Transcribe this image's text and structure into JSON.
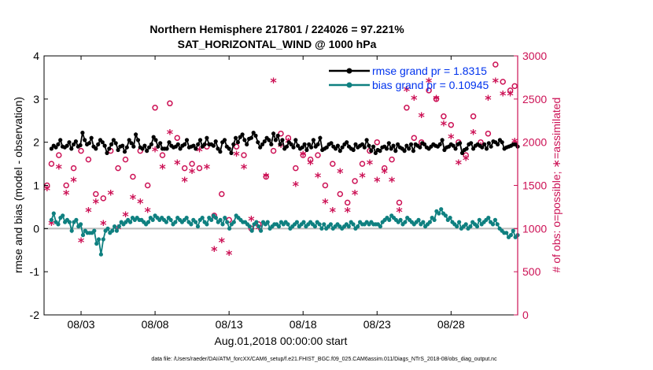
{
  "chart_data": {
    "type": "line",
    "title_line1": "Northern Hemisphere 217801 / 224026 = 97.221%",
    "title_line2": "SAT_HORIZONTAL_WIND @ 1000 hPa",
    "xlabel": "Aug.01,2018 00:00:00 start",
    "ylabel_left": "rmse and bias (model - observation)",
    "ylabel_right": "# of obs: o=possible; ∗=assimilated",
    "footer": "data file: /Users/raeder/DAI/ATM_forcXX/CAM6_setup/f.e21.FHIST_BGC.f09_025.CAM6assim.011/Diags_NTrS_2018-08/obs_diag_output.nc",
    "x_range_days": [
      0.5,
      32.5
    ],
    "y_left_range": [
      -2,
      4
    ],
    "y_right_range": [
      0,
      3000
    ],
    "x_tick_positions": [
      3,
      8,
      13,
      18,
      23,
      28
    ],
    "x_tick_labels": [
      "08/03",
      "08/08",
      "08/13",
      "08/18",
      "08/23",
      "08/28"
    ],
    "y_left_ticks": [
      "-2",
      "-1",
      "0",
      "1",
      "2",
      "3",
      "4"
    ],
    "y_right_ticks": [
      "0",
      "500",
      "1000",
      "1500",
      "2000",
      "2500",
      "3000"
    ],
    "legend": [
      {
        "label": "rmse grand pr = 1.8315",
        "color": "#000000"
      },
      {
        "label": "bias grand pr = 0.10945",
        "color": "#0f8080"
      }
    ],
    "legend_placement": "top-right",
    "colors": {
      "rmse": "#000000",
      "bias": "#0f8080",
      "obs": "#cc1155",
      "zero_line": "#bbbbbb",
      "label_color": "#0033ee"
    },
    "series": [
      {
        "name": "rmse grand pr = 1.8315",
        "values": [
          1.85,
          1.92,
          1.88,
          1.95,
          2.05,
          1.9,
          1.88,
          1.92,
          2.0,
          1.85,
          1.95,
          2.02,
          1.9,
          1.93,
          2.22,
          2.05,
          1.95,
          1.98,
          2.1,
          1.9,
          1.85,
          1.95,
          2.05,
          2.0,
          1.92,
          1.75,
          1.85,
          1.95,
          2.05,
          1.98,
          1.82,
          1.9,
          1.92,
          1.78,
          1.88,
          2.05,
          1.98,
          1.9,
          2.18,
          2.05,
          1.88,
          1.85,
          1.92,
          1.8,
          1.88,
          1.95,
          2.12,
          2.05,
          1.9,
          1.98,
          1.85,
          1.85,
          1.85,
          2.0,
          1.92,
          1.88,
          1.9,
          1.95,
          1.85,
          1.92,
          1.95,
          2.05,
          1.88,
          1.9,
          1.92,
          1.85,
          1.95,
          2.05,
          1.9,
          1.95,
          2.1,
          1.95,
          1.95,
          1.92,
          2.02,
          1.85,
          1.78,
          2.0,
          2.05,
          1.9,
          1.85,
          1.75,
          1.95,
          2.1,
          2.0,
          2.12,
          2.18,
          2.05,
          1.95,
          2.08,
          2.1,
          2.22,
          2.15,
          2.0,
          1.88,
          1.95,
          2.02,
          2.1,
          2.05,
          1.95,
          2.2,
          2.05,
          2.15,
          1.95,
          2.05,
          1.85,
          1.9,
          2.0,
          1.95,
          1.88,
          2.05,
          1.92,
          1.85,
          1.88,
          1.95,
          1.82,
          1.95,
          1.88,
          2.05,
          1.9,
          1.95,
          2.1,
          1.82,
          1.85,
          1.88,
          1.95,
          1.98,
          1.9,
          1.85,
          1.92,
          1.8,
          1.88,
          1.95,
          2.0,
          1.9,
          1.85,
          1.82,
          1.95,
          1.88,
          1.92,
          1.95,
          1.88,
          2.05,
          1.92,
          1.8,
          1.9,
          1.75,
          1.82,
          1.8,
          1.88,
          1.9,
          1.85,
          1.98,
          1.85,
          1.92,
          1.8,
          1.95,
          1.88,
          1.85,
          1.8,
          1.92,
          1.85,
          1.95,
          1.8,
          1.95,
          1.92,
          1.88,
          1.98,
          1.95,
          1.88,
          1.85,
          1.9,
          1.95,
          1.92,
          1.9,
          1.95,
          2.05,
          1.82,
          1.88,
          1.9,
          1.95,
          1.92,
          1.85,
          1.95,
          1.98,
          1.75,
          1.82,
          1.85,
          1.95,
          1.98,
          1.85,
          1.92,
          1.95,
          1.92,
          1.88,
          1.95,
          1.85,
          1.98,
          1.9,
          2.02,
          2.0,
          1.95,
          2.05,
          2.0,
          1.85,
          1.88,
          1.9,
          1.92,
          1.95,
          1.95,
          1.9
        ]
      },
      {
        "name": "bias grand pr = 0.10945",
        "values": [
          0.2,
          0.35,
          0.15,
          0.1,
          0.25,
          0.3,
          0.15,
          0.2,
          0.15,
          -0.05,
          0.15,
          0.2,
          0.05,
          0.1,
          -0.15,
          -0.05,
          -0.1,
          -0.1,
          -0.1,
          -0.05,
          -0.35,
          -0.25,
          -0.6,
          -0.25,
          -0.05,
          0.0,
          -0.1,
          -0.05,
          0.05,
          -0.05,
          0.05,
          0.15,
          0.1,
          0.15,
          0.2,
          0.15,
          0.25,
          0.2,
          0.25,
          0.2,
          0.2,
          0.15,
          0.1,
          0.15,
          0.25,
          0.2,
          0.3,
          0.25,
          0.2,
          0.25,
          0.2,
          0.15,
          0.25,
          0.2,
          0.1,
          0.15,
          0.25,
          0.2,
          0.15,
          0.2,
          0.25,
          0.15,
          0.1,
          0.2,
          0.15,
          0.05,
          0.2,
          0.25,
          0.15,
          0.1,
          0.25,
          0.2,
          0.3,
          0.25,
          0.15,
          0.2,
          0.1,
          0.25,
          0.15,
          0.0,
          0.1,
          0.15,
          0.3,
          0.25,
          0.2,
          0.15,
          0.15,
          0.1,
          0.05,
          -0.05,
          0.1,
          0.15,
          0.05,
          -0.05,
          0.15,
          0.1,
          0.15,
          0.0,
          0.05,
          0.1,
          0.1,
          0.05,
          0.15,
          0.1,
          0.15,
          0.1,
          0.0,
          0.05,
          0.1,
          0.15,
          0.05,
          0.1,
          0.15,
          0.05,
          0.1,
          0.15,
          0.1,
          0.05,
          0.15,
          0.1,
          0.0,
          0.1,
          0.0,
          0.05,
          0.1,
          0.0,
          0.05,
          0.1,
          0.05,
          0.0,
          0.05,
          0.1,
          0.05,
          0.15,
          0.1,
          0.0,
          0.05,
          0.15,
          0.1,
          0.1,
          0.15,
          0.1,
          0.15,
          0.1,
          0.1,
          0.1,
          0.05,
          0.15,
          0.2,
          0.25,
          0.2,
          0.3,
          0.25,
          0.2,
          0.15,
          0.2,
          0.1,
          0.15,
          0.25,
          0.2,
          0.15,
          0.1,
          0.15,
          0.2,
          0.1,
          0.15,
          0.05,
          0.1,
          0.15,
          0.25,
          0.2,
          0.4,
          0.35,
          0.45,
          0.35,
          0.3,
          0.2,
          0.25,
          0.15,
          0.1,
          0.05,
          0.15,
          0.0,
          0.05,
          0.1,
          0.0,
          0.05,
          0.15,
          0.1,
          0.05,
          0.2,
          0.1,
          0.15,
          0.2,
          0.25,
          0.15,
          0.1,
          0.2,
          0.1,
          0.0,
          -0.05,
          -0.1,
          -0.1,
          -0.2,
          -0.15,
          -0.05,
          -0.2,
          -0.15
        ]
      },
      {
        "name": "possible",
        "marker": "o",
        "points": [
          [
            0.7,
            1500
          ],
          [
            1.0,
            1750
          ],
          [
            1.5,
            1850
          ],
          [
            2.0,
            1500
          ],
          [
            2.5,
            1700
          ],
          [
            3.0,
            1900
          ],
          [
            3.5,
            1800
          ],
          [
            4.0,
            1400
          ],
          [
            4.5,
            1350
          ],
          [
            5.0,
            1900
          ],
          [
            5.5,
            1700
          ],
          [
            6.0,
            1800
          ],
          [
            6.5,
            1600
          ],
          [
            7.0,
            1900
          ],
          [
            7.5,
            1500
          ],
          [
            8.0,
            2400
          ],
          [
            8.5,
            1850
          ],
          [
            9.0,
            2450
          ],
          [
            9.5,
            2050
          ],
          [
            10.0,
            1700
          ],
          [
            10.5,
            1750
          ],
          [
            11.0,
            1700
          ],
          [
            11.5,
            1950
          ],
          [
            12.0,
            1150
          ],
          [
            12.5,
            1400
          ],
          [
            13.0,
            1100
          ],
          [
            13.5,
            1950
          ],
          [
            14.0,
            1850
          ],
          [
            14.5,
            1000
          ],
          [
            15.0,
            1050
          ],
          [
            15.5,
            1600
          ],
          [
            16.0,
            1900
          ],
          [
            16.5,
            2100
          ],
          [
            17.0,
            2050
          ],
          [
            17.5,
            1700
          ],
          [
            18.0,
            1850
          ],
          [
            18.5,
            1800
          ],
          [
            19.0,
            1850
          ],
          [
            19.5,
            1500
          ],
          [
            20.0,
            1750
          ],
          [
            20.5,
            1400
          ],
          [
            21.0,
            1300
          ],
          [
            21.5,
            1550
          ],
          [
            22.0,
            1750
          ],
          [
            22.5,
            1900
          ],
          [
            23.0,
            2000
          ],
          [
            23.5,
            1700
          ],
          [
            24.0,
            1800
          ],
          [
            24.5,
            1300
          ],
          [
            25.0,
            2400
          ],
          [
            25.5,
            2050
          ],
          [
            26.0,
            2000
          ],
          [
            26.5,
            2600
          ],
          [
            27.0,
            2500
          ],
          [
            27.5,
            2300
          ],
          [
            28.0,
            2200
          ],
          [
            28.5,
            2000
          ],
          [
            29.0,
            1850
          ],
          [
            29.5,
            2300
          ],
          [
            30.0,
            2000
          ],
          [
            30.5,
            2100
          ],
          [
            31.0,
            2900
          ],
          [
            31.5,
            2700
          ],
          [
            32.0,
            2600
          ],
          [
            32.3,
            2650
          ]
        ]
      },
      {
        "name": "assimilated",
        "marker": "*",
        "points": [
          [
            0.7,
            1450
          ],
          [
            1.0,
            1050
          ],
          [
            1.5,
            1700
          ],
          [
            2.0,
            1400
          ],
          [
            2.5,
            1550
          ],
          [
            3.0,
            850
          ],
          [
            3.5,
            1200
          ],
          [
            4.0,
            1300
          ],
          [
            4.5,
            1050
          ],
          [
            5.0,
            1400
          ],
          [
            5.5,
            1000
          ],
          [
            6.0,
            1150
          ],
          [
            6.5,
            1350
          ],
          [
            7.0,
            1300
          ],
          [
            7.5,
            1200
          ],
          [
            8.0,
            1900
          ],
          [
            8.5,
            1700
          ],
          [
            9.0,
            2100
          ],
          [
            9.5,
            1750
          ],
          [
            10.0,
            1550
          ],
          [
            10.5,
            1650
          ],
          [
            11.0,
            1900
          ],
          [
            11.5,
            1700
          ],
          [
            12.0,
            750
          ],
          [
            12.5,
            850
          ],
          [
            13.0,
            700
          ],
          [
            13.5,
            1850
          ],
          [
            14.0,
            1700
          ],
          [
            14.5,
            1100
          ],
          [
            15.0,
            1000
          ],
          [
            15.5,
            1600
          ],
          [
            16.0,
            2700
          ],
          [
            16.5,
            1950
          ],
          [
            17.0,
            2000
          ],
          [
            17.5,
            1500
          ],
          [
            18.0,
            1850
          ],
          [
            18.5,
            1750
          ],
          [
            19.0,
            1600
          ],
          [
            19.5,
            1300
          ],
          [
            20.0,
            1200
          ],
          [
            20.5,
            1650
          ],
          [
            21.0,
            1200
          ],
          [
            21.5,
            1400
          ],
          [
            22.0,
            1600
          ],
          [
            22.5,
            1750
          ],
          [
            23.0,
            1550
          ],
          [
            23.5,
            1650
          ],
          [
            24.0,
            1550
          ],
          [
            24.5,
            1200
          ],
          [
            25.0,
            2600
          ],
          [
            25.5,
            2500
          ],
          [
            26.0,
            2300
          ],
          [
            26.5,
            2700
          ],
          [
            27.0,
            2500
          ],
          [
            27.5,
            2200
          ],
          [
            28.0,
            2050
          ],
          [
            28.5,
            1750
          ],
          [
            29.0,
            1800
          ],
          [
            29.5,
            2100
          ],
          [
            30.0,
            1950
          ],
          [
            30.5,
            2500
          ],
          [
            31.0,
            2700
          ],
          [
            31.5,
            2550
          ],
          [
            32.0,
            2550
          ],
          [
            32.3,
            2000
          ]
        ]
      }
    ]
  }
}
